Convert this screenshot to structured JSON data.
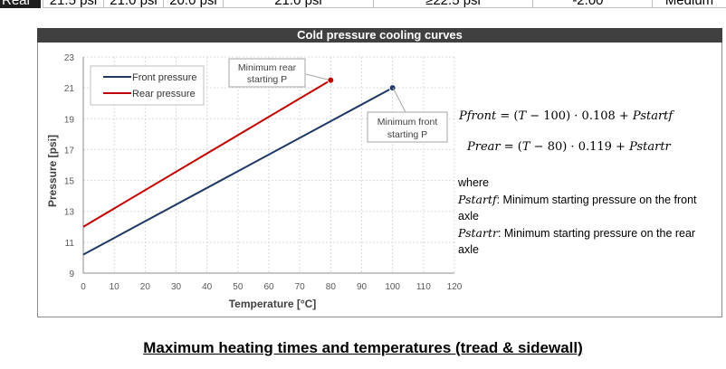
{
  "top_table": {
    "row_label": "Rear",
    "cells": [
      "21.5 psi",
      "21.0 psi",
      "20.0 psi",
      "21.0 psi",
      "≥22.5 psi",
      "-2.00 °",
      "Medium"
    ]
  },
  "chart": {
    "title": "Cold pressure cooling curves"
  },
  "chart_data": {
    "type": "line",
    "title": "Cold pressure cooling curves",
    "xlabel": "Temperature [°C]",
    "ylabel": "Pressure [psi]",
    "xlim": [
      0,
      120
    ],
    "ylim": [
      9,
      23
    ],
    "xticks": [
      0,
      10,
      20,
      30,
      40,
      50,
      60,
      70,
      80,
      90,
      100,
      110,
      120
    ],
    "yticks": [
      9,
      11,
      13,
      15,
      17,
      19,
      21,
      23
    ],
    "grid": true,
    "legend_position": "top-left",
    "series": [
      {
        "name": "Front pressure",
        "color": "#1f3864",
        "x": [
          0,
          100
        ],
        "y": [
          10.2,
          21.0
        ]
      },
      {
        "name": "Rear pressure",
        "color": "#c00000",
        "x": [
          0,
          80
        ],
        "y": [
          12.0,
          21.5
        ]
      }
    ],
    "annotations": [
      {
        "text": "Minimum rear starting P",
        "x": 80,
        "y": 21.5,
        "color": "#c00000"
      },
      {
        "text": "Minimum front starting P",
        "x": 100,
        "y": 21.0,
        "color": "#1f3864"
      }
    ]
  },
  "annotation_labels": {
    "rear_line1": "Minimum rear",
    "rear_line2": "starting P",
    "front_line1": "Minimum front",
    "front_line2": "starting P"
  },
  "formulas": {
    "front": {
      "lhs": "Pfront",
      "middle": " = (",
      "var": "T",
      "rest": " − 100) · 0.108 + ",
      "param": "Pstartf"
    },
    "rear": {
      "lhs": "Prear",
      "middle": " = (",
      "var": "T",
      "rest": " − 80) · 0.119 + ",
      "param": "Pstartr"
    }
  },
  "notes": {
    "where": "where",
    "pstartf_symbol": "Pstartf",
    "pstartf_text": ": Minimum starting pressure on the front axle",
    "pstartr_symbol": "Pstartr",
    "pstartr_text": ": Minimum starting pressure on the rear axle"
  },
  "section_heading": "Maximum heating times and temperatures (tread & sidewall)"
}
